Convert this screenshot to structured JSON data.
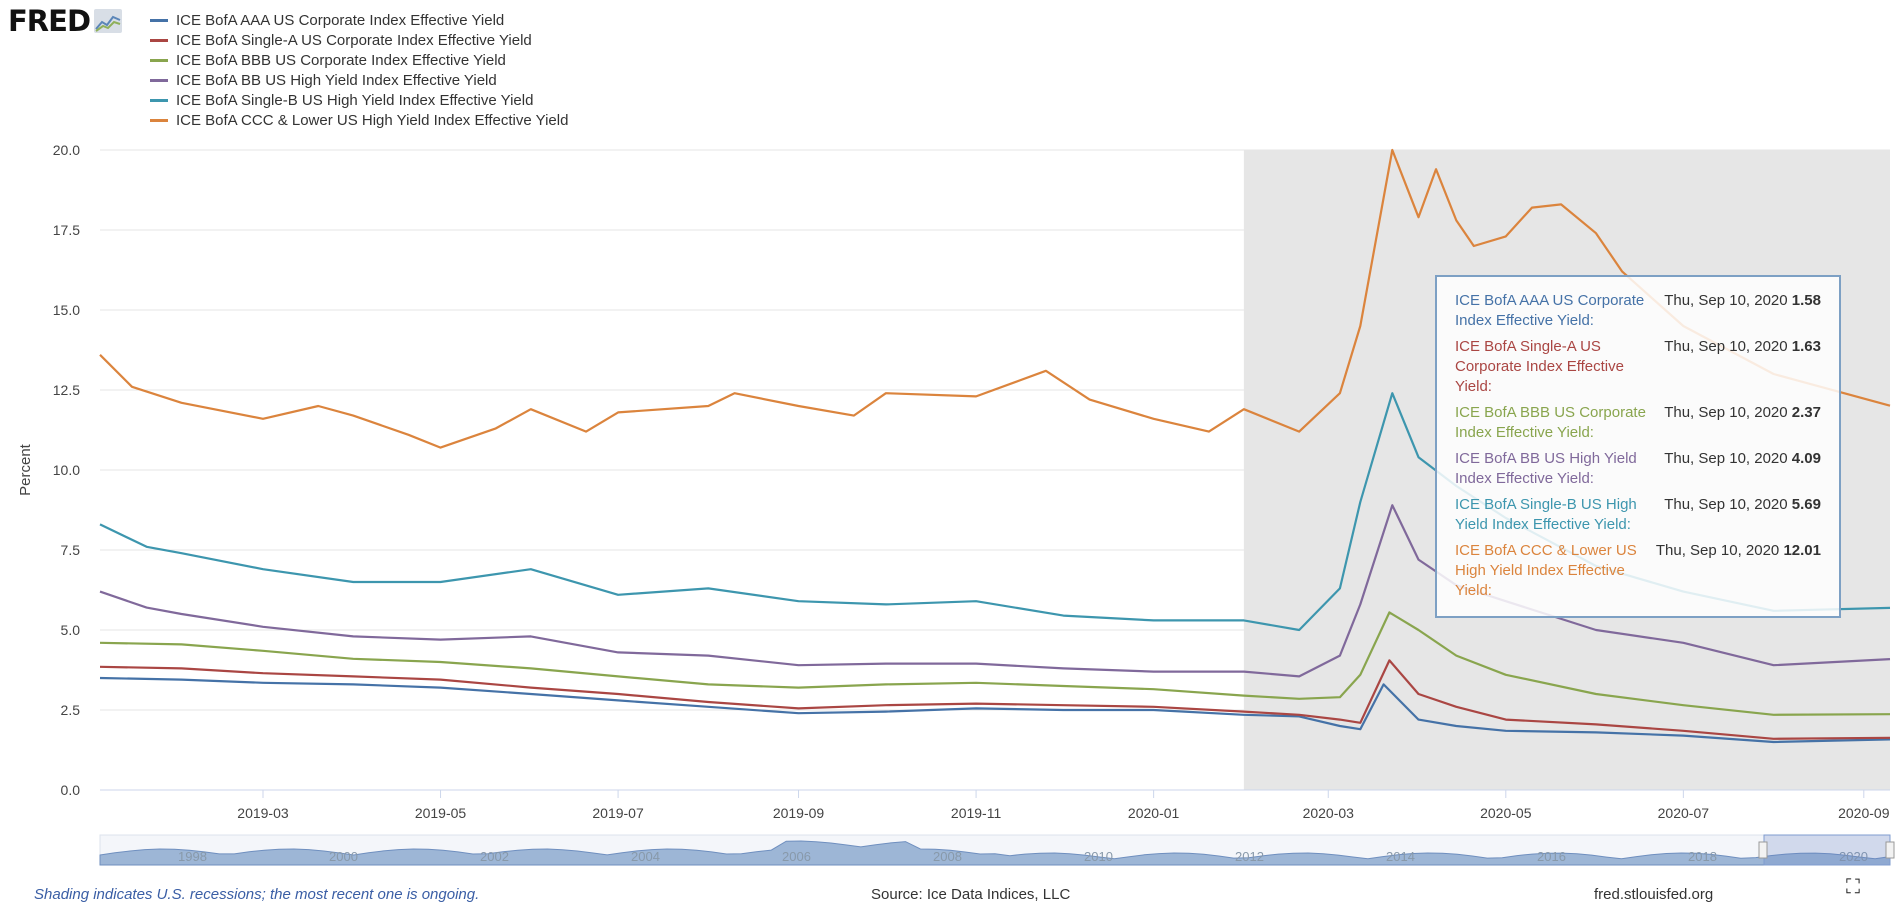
{
  "logo": {
    "text": "FRED"
  },
  "chart_data": {
    "type": "line",
    "title": "",
    "xlabel": "",
    "ylabel": "Percent",
    "ylim": [
      0,
      20
    ],
    "yticks": [
      "0.0",
      "2.5",
      "5.0",
      "7.5",
      "10.0",
      "12.5",
      "15.0",
      "17.5",
      "20.0"
    ],
    "xticks": [
      "2019-03",
      "2019-05",
      "2019-07",
      "2019-09",
      "2019-11",
      "2020-01",
      "2020-03",
      "2020-05",
      "2020-07",
      "2020-09"
    ],
    "xrange": [
      "2019-01-04",
      "2020-09-10"
    ],
    "recession_start": "2020-02-01",
    "grid": true,
    "legend_position": "top-left",
    "series": [
      {
        "name": "ICE BofA AAA US Corporate Index Effective Yield",
        "color": "#4572a7",
        "points": [
          [
            "2019-01-04",
            3.5
          ],
          [
            "2019-02-01",
            3.45
          ],
          [
            "2019-03-01",
            3.35
          ],
          [
            "2019-04-01",
            3.3
          ],
          [
            "2019-05-01",
            3.2
          ],
          [
            "2019-06-01",
            3.0
          ],
          [
            "2019-07-01",
            2.8
          ],
          [
            "2019-08-01",
            2.6
          ],
          [
            "2019-09-01",
            2.4
          ],
          [
            "2019-10-01",
            2.45
          ],
          [
            "2019-11-01",
            2.55
          ],
          [
            "2019-12-01",
            2.5
          ],
          [
            "2020-01-01",
            2.5
          ],
          [
            "2020-02-01",
            2.35
          ],
          [
            "2020-02-20",
            2.3
          ],
          [
            "2020-03-05",
            2.0
          ],
          [
            "2020-03-12",
            1.9
          ],
          [
            "2020-03-20",
            3.3
          ],
          [
            "2020-04-01",
            2.2
          ],
          [
            "2020-04-14",
            2.0
          ],
          [
            "2020-05-01",
            1.85
          ],
          [
            "2020-06-01",
            1.8
          ],
          [
            "2020-07-01",
            1.7
          ],
          [
            "2020-08-01",
            1.5
          ],
          [
            "2020-09-10",
            1.58
          ]
        ]
      },
      {
        "name": "ICE BofA Single-A US Corporate Index Effective Yield",
        "color": "#aa4643",
        "points": [
          [
            "2019-01-04",
            3.85
          ],
          [
            "2019-02-01",
            3.8
          ],
          [
            "2019-03-01",
            3.65
          ],
          [
            "2019-04-01",
            3.55
          ],
          [
            "2019-05-01",
            3.45
          ],
          [
            "2019-06-01",
            3.2
          ],
          [
            "2019-07-01",
            3.0
          ],
          [
            "2019-08-01",
            2.75
          ],
          [
            "2019-09-01",
            2.55
          ],
          [
            "2019-10-01",
            2.65
          ],
          [
            "2019-11-01",
            2.7
          ],
          [
            "2019-12-01",
            2.65
          ],
          [
            "2020-01-01",
            2.6
          ],
          [
            "2020-02-01",
            2.45
          ],
          [
            "2020-02-20",
            2.35
          ],
          [
            "2020-03-05",
            2.2
          ],
          [
            "2020-03-12",
            2.1
          ],
          [
            "2020-03-22",
            4.05
          ],
          [
            "2020-04-01",
            3.0
          ],
          [
            "2020-04-14",
            2.6
          ],
          [
            "2020-05-01",
            2.2
          ],
          [
            "2020-06-01",
            2.05
          ],
          [
            "2020-07-01",
            1.85
          ],
          [
            "2020-08-01",
            1.6
          ],
          [
            "2020-09-10",
            1.63
          ]
        ]
      },
      {
        "name": "ICE BofA BBB US Corporate Index Effective Yield",
        "color": "#89a54e",
        "points": [
          [
            "2019-01-04",
            4.6
          ],
          [
            "2019-02-01",
            4.55
          ],
          [
            "2019-03-01",
            4.35
          ],
          [
            "2019-04-01",
            4.1
          ],
          [
            "2019-05-01",
            4.0
          ],
          [
            "2019-06-01",
            3.8
          ],
          [
            "2019-07-01",
            3.55
          ],
          [
            "2019-08-01",
            3.3
          ],
          [
            "2019-09-01",
            3.2
          ],
          [
            "2019-10-01",
            3.3
          ],
          [
            "2019-11-01",
            3.35
          ],
          [
            "2019-12-01",
            3.25
          ],
          [
            "2020-01-01",
            3.15
          ],
          [
            "2020-02-01",
            2.95
          ],
          [
            "2020-02-20",
            2.85
          ],
          [
            "2020-03-05",
            2.9
          ],
          [
            "2020-03-12",
            3.6
          ],
          [
            "2020-03-22",
            5.55
          ],
          [
            "2020-04-01",
            5.0
          ],
          [
            "2020-04-14",
            4.2
          ],
          [
            "2020-05-01",
            3.6
          ],
          [
            "2020-06-01",
            3.0
          ],
          [
            "2020-07-01",
            2.65
          ],
          [
            "2020-08-01",
            2.35
          ],
          [
            "2020-09-10",
            2.37
          ]
        ]
      },
      {
        "name": "ICE BofA BB US High Yield Index Effective Yield",
        "color": "#80699b",
        "points": [
          [
            "2019-01-04",
            6.2
          ],
          [
            "2019-01-20",
            5.7
          ],
          [
            "2019-02-01",
            5.5
          ],
          [
            "2019-03-01",
            5.1
          ],
          [
            "2019-04-01",
            4.8
          ],
          [
            "2019-05-01",
            4.7
          ],
          [
            "2019-06-01",
            4.8
          ],
          [
            "2019-07-01",
            4.3
          ],
          [
            "2019-08-01",
            4.2
          ],
          [
            "2019-09-01",
            3.9
          ],
          [
            "2019-10-01",
            3.95
          ],
          [
            "2019-11-01",
            3.95
          ],
          [
            "2019-12-01",
            3.8
          ],
          [
            "2020-01-01",
            3.7
          ],
          [
            "2020-02-01",
            3.7
          ],
          [
            "2020-02-20",
            3.55
          ],
          [
            "2020-03-05",
            4.2
          ],
          [
            "2020-03-12",
            5.8
          ],
          [
            "2020-03-23",
            8.9
          ],
          [
            "2020-04-01",
            7.2
          ],
          [
            "2020-04-14",
            6.4
          ],
          [
            "2020-05-01",
            5.9
          ],
          [
            "2020-06-01",
            5.0
          ],
          [
            "2020-07-01",
            4.6
          ],
          [
            "2020-08-01",
            3.9
          ],
          [
            "2020-09-10",
            4.09
          ]
        ]
      },
      {
        "name": "ICE BofA Single-B US High Yield Index Effective Yield",
        "color": "#3d96ae",
        "points": [
          [
            "2019-01-04",
            8.3
          ],
          [
            "2019-01-20",
            7.6
          ],
          [
            "2019-02-01",
            7.4
          ],
          [
            "2019-03-01",
            6.9
          ],
          [
            "2019-04-01",
            6.5
          ],
          [
            "2019-05-01",
            6.5
          ],
          [
            "2019-06-01",
            6.9
          ],
          [
            "2019-07-01",
            6.1
          ],
          [
            "2019-08-01",
            6.3
          ],
          [
            "2019-09-01",
            5.9
          ],
          [
            "2019-10-01",
            5.8
          ],
          [
            "2019-11-01",
            5.9
          ],
          [
            "2019-12-01",
            5.45
          ],
          [
            "2020-01-01",
            5.3
          ],
          [
            "2020-02-01",
            5.3
          ],
          [
            "2020-02-20",
            5.0
          ],
          [
            "2020-03-05",
            6.3
          ],
          [
            "2020-03-12",
            9.0
          ],
          [
            "2020-03-23",
            12.4
          ],
          [
            "2020-04-01",
            10.4
          ],
          [
            "2020-04-14",
            9.5
          ],
          [
            "2020-05-01",
            8.5
          ],
          [
            "2020-06-01",
            7.0
          ],
          [
            "2020-07-01",
            6.2
          ],
          [
            "2020-08-01",
            5.6
          ],
          [
            "2020-09-10",
            5.69
          ]
        ]
      },
      {
        "name": "ICE BofA CCC & Lower US High Yield Index Effective Yield",
        "color": "#db843d",
        "points": [
          [
            "2019-01-04",
            13.6
          ],
          [
            "2019-01-15",
            12.6
          ],
          [
            "2019-02-01",
            12.1
          ],
          [
            "2019-03-01",
            11.6
          ],
          [
            "2019-03-20",
            12.0
          ],
          [
            "2019-04-01",
            11.7
          ],
          [
            "2019-04-20",
            11.1
          ],
          [
            "2019-05-01",
            10.7
          ],
          [
            "2019-05-20",
            11.3
          ],
          [
            "2019-06-01",
            11.9
          ],
          [
            "2019-06-20",
            11.2
          ],
          [
            "2019-07-01",
            11.8
          ],
          [
            "2019-08-01",
            12.0
          ],
          [
            "2019-08-10",
            12.4
          ],
          [
            "2019-09-01",
            12.0
          ],
          [
            "2019-09-20",
            11.7
          ],
          [
            "2019-10-01",
            12.4
          ],
          [
            "2019-11-01",
            12.3
          ],
          [
            "2019-11-25",
            13.1
          ],
          [
            "2019-12-10",
            12.2
          ],
          [
            "2020-01-01",
            11.6
          ],
          [
            "2020-01-20",
            11.2
          ],
          [
            "2020-02-01",
            11.9
          ],
          [
            "2020-02-20",
            11.2
          ],
          [
            "2020-03-05",
            12.4
          ],
          [
            "2020-03-12",
            14.5
          ],
          [
            "2020-03-23",
            20.0
          ],
          [
            "2020-04-01",
            17.9
          ],
          [
            "2020-04-07",
            19.4
          ],
          [
            "2020-04-14",
            17.8
          ],
          [
            "2020-04-20",
            17.0
          ],
          [
            "2020-05-01",
            17.3
          ],
          [
            "2020-05-10",
            18.2
          ],
          [
            "2020-05-20",
            18.3
          ],
          [
            "2020-06-01",
            17.4
          ],
          [
            "2020-06-10",
            16.2
          ],
          [
            "2020-07-01",
            14.5
          ],
          [
            "2020-08-01",
            13.0
          ],
          [
            "2020-09-10",
            12.01
          ]
        ]
      }
    ]
  },
  "tooltip": {
    "rows": [
      {
        "label": "ICE BofA AAA US Corporate Index Effective Yield:",
        "date": "Thu, Sep 10, 2020",
        "value": "1.58",
        "color": "#4572a7"
      },
      {
        "label": "ICE BofA Single-A US Corporate Index Effective Yield:",
        "date": "Thu, Sep 10, 2020",
        "value": "1.63",
        "color": "#aa4643"
      },
      {
        "label": "ICE BofA BBB US Corporate Index Effective Yield:",
        "date": "Thu, Sep 10, 2020",
        "value": "2.37",
        "color": "#89a54e"
      },
      {
        "label": "ICE BofA BB US High Yield Index Effective Yield:",
        "date": "Thu, Sep 10, 2020",
        "value": "4.09",
        "color": "#80699b"
      },
      {
        "label": "ICE BofA Single-B US High Yield Index Effective Yield:",
        "date": "Thu, Sep 10, 2020",
        "value": "5.69",
        "color": "#3d96ae"
      },
      {
        "label": "ICE BofA CCC & Lower US High Yield Index Effective Yield:",
        "date": "Thu, Sep 10, 2020",
        "value": "12.01",
        "color": "#db843d"
      }
    ]
  },
  "navigator": {
    "year_labels": [
      "1998",
      "2000",
      "2002",
      "2004",
      "2006",
      "2008",
      "2010",
      "2012",
      "2014",
      "2016",
      "2018",
      "2020"
    ]
  },
  "footer": {
    "note": "Shading indicates U.S. recessions; the most recent one is ongoing.",
    "source": "Source: Ice Data Indices, LLC",
    "site": "fred.stlouisfed.org"
  },
  "colors": {
    "recession_shade": "#e6e6e6",
    "navigator_fill": "#9db6d6",
    "grid": "#e6e6e6"
  }
}
